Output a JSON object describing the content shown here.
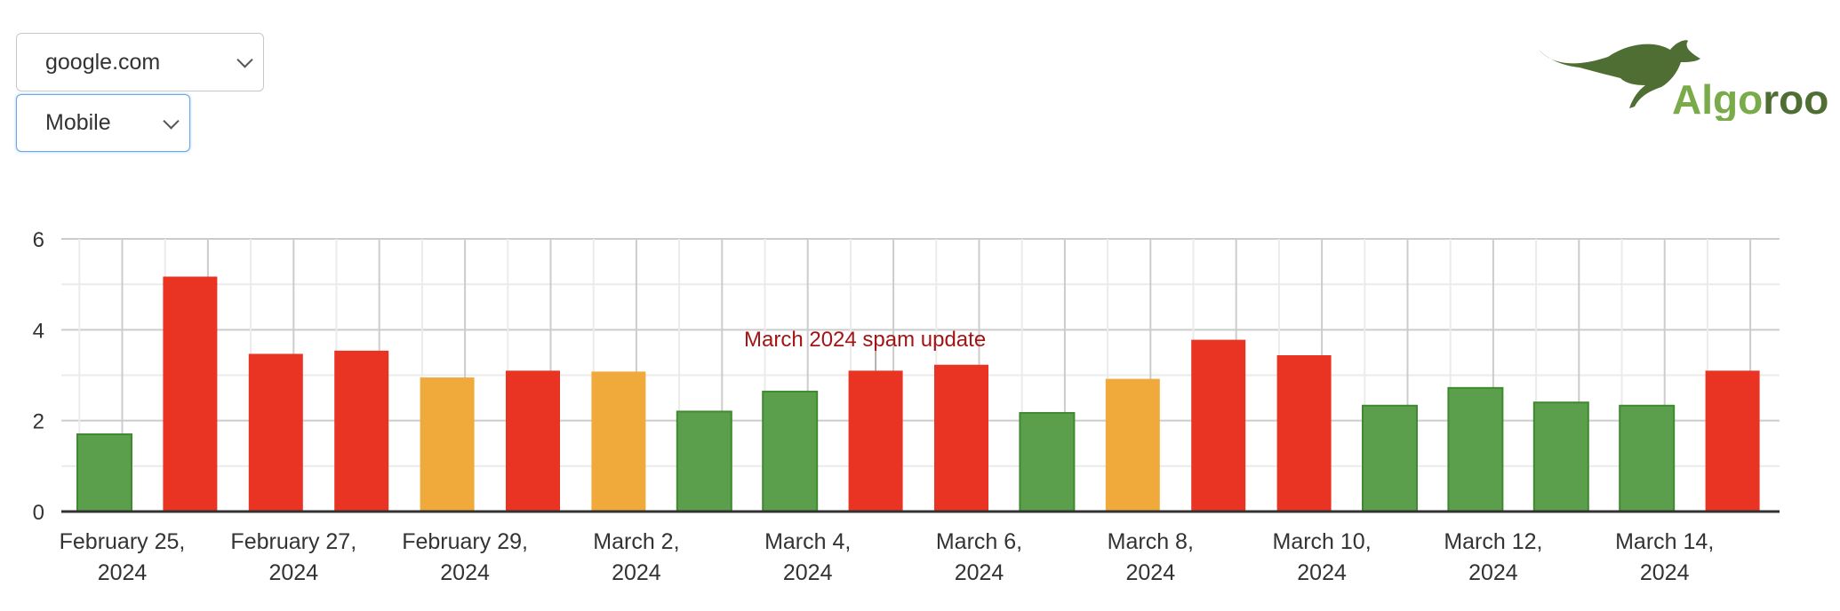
{
  "controls": {
    "domain_select": {
      "value": "google.com"
    },
    "device_select": {
      "value": "Mobile"
    }
  },
  "logo": {
    "text": "Algoroo",
    "icon": "kangaroo-icon",
    "colors": {
      "light": "#7aab4a",
      "dark": "#4e6e34"
    }
  },
  "chart_data": {
    "type": "bar",
    "title": "",
    "xlabel": "",
    "ylabel": "",
    "ylim": [
      0,
      6
    ],
    "yticks": [
      "0",
      "2",
      "4",
      "6"
    ],
    "grid": true,
    "legend": "none",
    "categories": [
      "2024-02-25",
      "2024-02-26",
      "2024-02-27",
      "2024-02-28",
      "2024-02-29",
      "2024-03-01",
      "2024-03-02",
      "2024-03-03",
      "2024-03-04",
      "2024-03-05",
      "2024-03-06",
      "2024-03-07",
      "2024-03-08",
      "2024-03-09",
      "2024-03-10",
      "2024-03-11",
      "2024-03-12",
      "2024-03-13",
      "2024-03-14",
      "2024-03-15"
    ],
    "values": [
      1.7,
      5.17,
      3.47,
      3.54,
      2.95,
      3.1,
      3.08,
      2.2,
      2.64,
      3.1,
      3.23,
      2.17,
      2.92,
      3.78,
      3.44,
      2.33,
      2.72,
      2.4,
      2.33,
      3.1
    ],
    "bar_colors": [
      "green",
      "red",
      "red",
      "red",
      "orange",
      "red",
      "orange",
      "green",
      "green",
      "red",
      "red",
      "green",
      "orange",
      "red",
      "red",
      "green",
      "green",
      "green",
      "green",
      "red"
    ],
    "colors": {
      "green": "#5b9f4c",
      "red": "#e93424",
      "orange": "#f0a93b"
    },
    "xtick_labels": [
      {
        "line1": "February 25,",
        "line2": "2024"
      },
      {
        "line1": "February 27,",
        "line2": "2024"
      },
      {
        "line1": "February 29,",
        "line2": "2024"
      },
      {
        "line1": "March 2,",
        "line2": "2024"
      },
      {
        "line1": "March 4,",
        "line2": "2024"
      },
      {
        "line1": "March 6,",
        "line2": "2024"
      },
      {
        "line1": "March 8,",
        "line2": "2024"
      },
      {
        "line1": "March 10,",
        "line2": "2024"
      },
      {
        "line1": "March 12,",
        "line2": "2024"
      },
      {
        "line1": "March 14,",
        "line2": "2024"
      }
    ],
    "annotations": [
      {
        "text": "March 2024 spam update",
        "date": "2024-03-05",
        "color": "#a31515"
      }
    ]
  }
}
